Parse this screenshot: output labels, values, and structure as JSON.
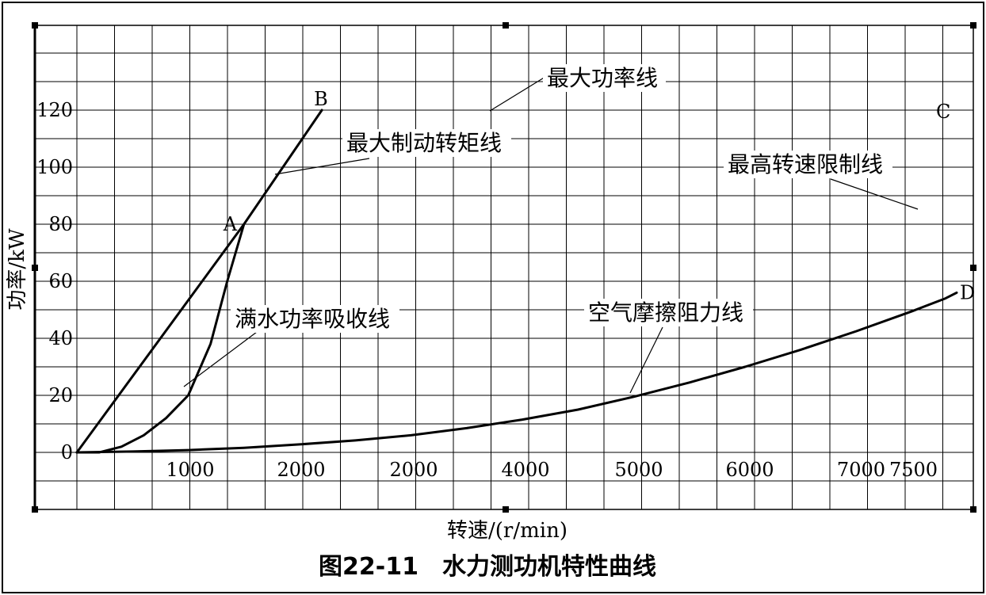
{
  "chart_data": {
    "type": "line",
    "title": "",
    "caption": "图22-11　水力测功机特性曲线",
    "xlabel": "转速/(r/min)",
    "ylabel": "功率/kW",
    "x_tick_labels": [
      "1000",
      "2000",
      "2000",
      "4000",
      "5000",
      "6000",
      "7000",
      "7500"
    ],
    "y_ticks": [
      0,
      20,
      40,
      60,
      80,
      100,
      120
    ],
    "ylim": [
      -20,
      150
    ],
    "grid": true,
    "series": [
      {
        "name": "最大制动转矩线",
        "points": [
          [
            0,
            0
          ],
          [
            1500,
            80
          ],
          [
            2200,
            120
          ]
        ]
      },
      {
        "name": "满水功率吸收线",
        "points": [
          [
            0,
            0
          ],
          [
            200,
            0
          ],
          [
            400,
            2
          ],
          [
            600,
            6
          ],
          [
            800,
            12
          ],
          [
            1000,
            20
          ],
          [
            1200,
            38
          ],
          [
            1350,
            60
          ],
          [
            1500,
            80
          ]
        ]
      },
      {
        "name": "空气摩擦阻力线",
        "points": [
          [
            0,
            0
          ],
          [
            500,
            0.3
          ],
          [
            1000,
            0.8
          ],
          [
            1500,
            1.6
          ],
          [
            2000,
            2.8
          ],
          [
            2500,
            4.2
          ],
          [
            3000,
            6
          ],
          [
            3500,
            8.5
          ],
          [
            4000,
            11.5
          ],
          [
            4500,
            15
          ],
          [
            5000,
            19.5
          ],
          [
            5500,
            24.5
          ],
          [
            6000,
            30
          ],
          [
            6500,
            36
          ],
          [
            7000,
            42.5
          ],
          [
            7500,
            49.5
          ],
          [
            7600,
            51
          ],
          [
            7800,
            54
          ],
          [
            7900,
            56
          ]
        ]
      }
    ],
    "point_labels": [
      {
        "label": "A",
        "x": 1500,
        "y": 80
      },
      {
        "label": "B",
        "x": 2200,
        "y": 120
      },
      {
        "label": "C",
        "x": 7900,
        "y": 120
      },
      {
        "label": "D",
        "x": 7900,
        "y": 56
      }
    ],
    "annotations": [
      {
        "text": "最大功率线"
      },
      {
        "text": "最大制动转矩线"
      },
      {
        "text": "最高转速限制线"
      },
      {
        "text": "满水功率吸收线"
      },
      {
        "text": "空气摩擦阻力线"
      }
    ]
  }
}
